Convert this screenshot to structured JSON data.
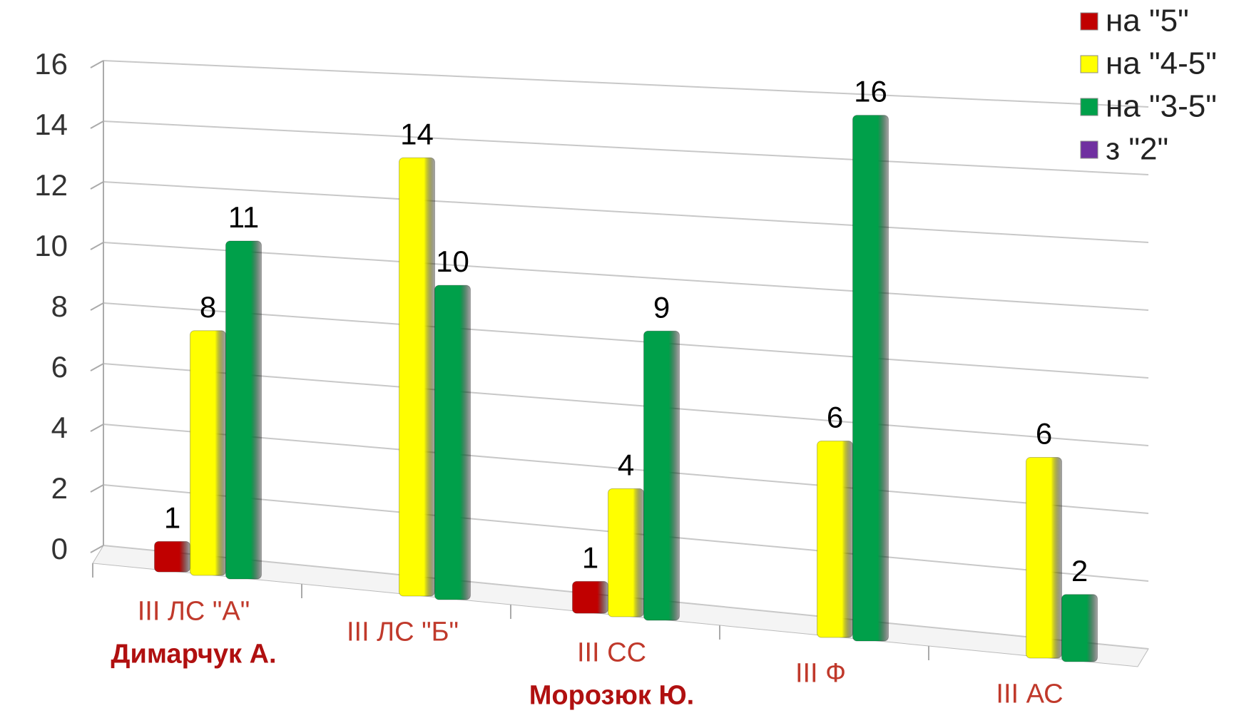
{
  "chart_data": {
    "type": "bar",
    "categories": [
      "III ЛС \"А\"",
      "III ЛС \"Б\"",
      "III СС",
      "III Ф",
      "III АС"
    ],
    "annotations": [
      {
        "category": 0,
        "text": "Димарчук А."
      },
      {
        "category": 2,
        "text": "Морозюк Ю."
      }
    ],
    "series": [
      {
        "name": "на \"5\"",
        "color": "#c00000",
        "values": [
          1,
          null,
          1,
          null,
          null
        ]
      },
      {
        "name": "на \"4-5\"",
        "color": "#ffff00",
        "values": [
          8,
          14,
          4,
          6,
          6
        ]
      },
      {
        "name": "на \"3-5\"",
        "color": "#00a04a",
        "values": [
          11,
          10,
          9,
          16,
          2
        ]
      },
      {
        "name": "з \"2\"",
        "color": "#7030a0",
        "values": [
          null,
          null,
          null,
          null,
          null
        ]
      }
    ],
    "ylim": [
      0,
      16
    ],
    "yticks": [
      0,
      2,
      4,
      6,
      8,
      10,
      12,
      14,
      16
    ],
    "grid": true,
    "legend": "top-right"
  }
}
